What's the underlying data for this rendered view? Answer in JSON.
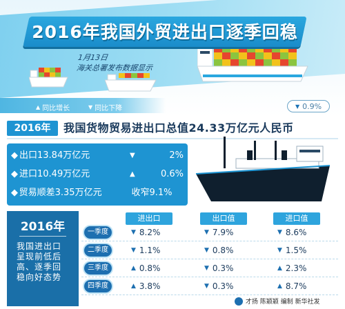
{
  "header": {
    "title": "2016年我国外贸进出口逐季回稳",
    "note_line1": "1月13日",
    "note_line2": "海关总署发布数据显示"
  },
  "legend": {
    "increase": "同比增长",
    "decrease": "同比下降"
  },
  "badge": {
    "value": "0.9%"
  },
  "headline": {
    "year": "2016年",
    "text": "我国货物贸易进出口总值24.33万亿元人民币"
  },
  "stats": [
    {
      "label": "出口13.84万亿元",
      "value": "2%",
      "direction": "down"
    },
    {
      "label": "进口10.49万亿元",
      "value": "0.6%",
      "direction": "up"
    },
    {
      "label": "贸易顺差3.35万亿元",
      "value": "收窄9.1%",
      "direction": "none"
    }
  ],
  "summary": {
    "year": "2016年",
    "text": "我国进出口呈现前低后高、逐季回稳向好态势"
  },
  "table": {
    "columns": [
      "进出口",
      "出口值",
      "进口值"
    ],
    "rows": [
      {
        "quarter": "一季度",
        "cells": [
          {
            "dir": "down",
            "v": "8.2%"
          },
          {
            "dir": "down",
            "v": "7.9%"
          },
          {
            "dir": "down",
            "v": "8.6%"
          }
        ]
      },
      {
        "quarter": "二季度",
        "cells": [
          {
            "dir": "down",
            "v": "1.1%"
          },
          {
            "dir": "down",
            "v": "0.8%"
          },
          {
            "dir": "down",
            "v": "1.5%"
          }
        ]
      },
      {
        "quarter": "三季度",
        "cells": [
          {
            "dir": "up",
            "v": "0.8%"
          },
          {
            "dir": "down",
            "v": "0.3%"
          },
          {
            "dir": "up",
            "v": "2.3%"
          }
        ]
      },
      {
        "quarter": "四季度",
        "cells": [
          {
            "dir": "up",
            "v": "3.8%"
          },
          {
            "dir": "down",
            "v": "0.3%"
          },
          {
            "dir": "up",
            "v": "8.7%"
          }
        ]
      }
    ]
  },
  "credit": "才扬 陈颖颖 编制 新华社发",
  "colors": {
    "accent": "#1e94d2",
    "deep": "#1a6fa8",
    "text": "#1a3a5c",
    "ship_hull": "#0f1f2e"
  }
}
